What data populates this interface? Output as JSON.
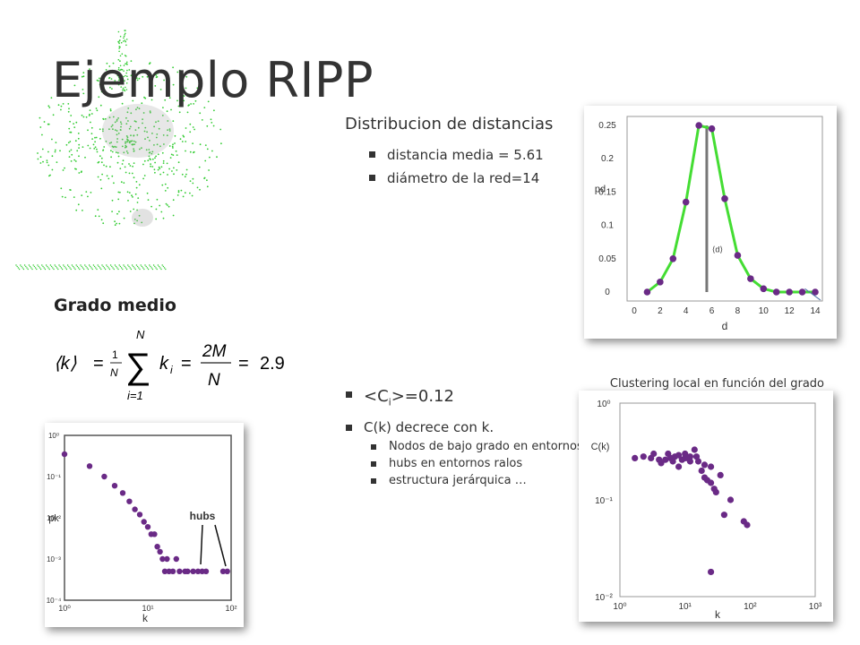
{
  "slide": {
    "title": "Ejemplo RIPP"
  },
  "distances": {
    "heading": "Distribucion de distancias",
    "bullets": [
      "distancia media = 5.61",
      "diámetro de la red=14"
    ]
  },
  "degree": {
    "heading": "Grado medio",
    "formula": {
      "lhs": "⟨k⟩",
      "eq1": "=",
      "frac_num": "1",
      "frac_den": "N",
      "sum_upper": "N",
      "sum_symbol": "∑",
      "sum_lower": "i=1",
      "summand": "k",
      "summand_sub": "i",
      "eq2": "=",
      "frac2_num": "2M",
      "frac2_den": "N",
      "eq3": "=",
      "result": "2.9"
    }
  },
  "clustering": {
    "main_pre": "<C",
    "main_sub": "i",
    "main_post": ">=0.12",
    "second": "C(k) decrece con k.",
    "subitems": [
      "Nodos de bajo grado en entornos densos",
      "hubs en entornos ralos",
      "estructura jerárquica …"
    ],
    "caption": "Clustering local en función del grado de un nodo"
  },
  "chart_data": [
    {
      "type": "line",
      "xlabel": "d",
      "ylabel": "pd",
      "xlim": [
        0,
        14
      ],
      "ylim": [
        0,
        0.25
      ],
      "xticks": [
        "0",
        "2",
        "4",
        "6",
        "8",
        "10",
        "12",
        "14"
      ],
      "yticks": [
        "0",
        "0.05",
        "0.1",
        "0.15",
        "0.2",
        "0.25"
      ],
      "x": [
        1,
        2,
        3,
        4,
        5,
        6,
        7,
        8,
        9,
        10,
        11,
        12,
        13,
        14
      ],
      "y": [
        0.0,
        0.015,
        0.05,
        0.135,
        0.25,
        0.245,
        0.14,
        0.055,
        0.02,
        0.005,
        0.0,
        0.0,
        0.0,
        0.0
      ],
      "mean_marker": {
        "x": 5.61,
        "label": "⟨d⟩"
      },
      "line_color": "#44dd33",
      "point_color": "#6a2a86"
    },
    {
      "type": "scatter",
      "scale": "log-log",
      "xlabel": "k",
      "ylabel": "C(k)",
      "xticks": [
        "10⁰",
        "10¹",
        "10²",
        "10³"
      ],
      "yticks": [
        "10⁻²",
        "10⁻¹",
        "10⁰"
      ],
      "x": [
        1.7,
        2.3,
        3,
        3.3,
        4,
        4.3,
        5,
        5.5,
        6,
        6.5,
        7,
        8,
        8,
        9,
        10,
        10,
        11,
        12,
        12,
        14,
        15,
        16,
        18,
        20,
        20,
        22,
        25,
        25,
        28,
        30,
        35,
        40,
        50,
        80,
        90
      ],
      "y": [
        0.27,
        0.28,
        0.27,
        0.3,
        0.26,
        0.24,
        0.26,
        0.3,
        0.27,
        0.25,
        0.28,
        0.29,
        0.22,
        0.26,
        0.27,
        0.3,
        0.27,
        0.25,
        0.28,
        0.33,
        0.28,
        0.25,
        0.2,
        0.17,
        0.23,
        0.16,
        0.15,
        0.22,
        0.13,
        0.12,
        0.18,
        0.07,
        0.1,
        0.06,
        0.055
      ],
      "outlier": {
        "x": 25,
        "y": 0.018
      },
      "point_color": "#6a2a86"
    },
    {
      "type": "scatter",
      "scale": "log-log",
      "xlabel": "k",
      "ylabel": "pk",
      "xticks": [
        "10⁰",
        "10¹",
        "10²"
      ],
      "yticks": [
        "10⁻⁴",
        "10⁻³",
        "10⁻²",
        "10⁻¹",
        "10⁰"
      ],
      "x": [
        1,
        2,
        3,
        4,
        5,
        6,
        7,
        8,
        9,
        10,
        11,
        12,
        13,
        14,
        15,
        16,
        17,
        18,
        20,
        22,
        24,
        28,
        30,
        35,
        40,
        45,
        50,
        80,
        90
      ],
      "y": [
        0.35,
        0.18,
        0.1,
        0.06,
        0.04,
        0.025,
        0.016,
        0.012,
        0.008,
        0.006,
        0.004,
        0.004,
        0.002,
        0.0015,
        0.001,
        0.0005,
        0.001,
        0.0005,
        0.0005,
        0.001,
        0.0005,
        0.0005,
        0.0005,
        0.0005,
        0.0005,
        0.0005,
        0.0005,
        0.0005,
        0.0005
      ],
      "annotation": "hubs",
      "point_color": "#6a2a86"
    }
  ],
  "colors": {
    "network_green": "#33cc33",
    "marker_purple": "#6a2a86",
    "text_dark": "#333333"
  }
}
